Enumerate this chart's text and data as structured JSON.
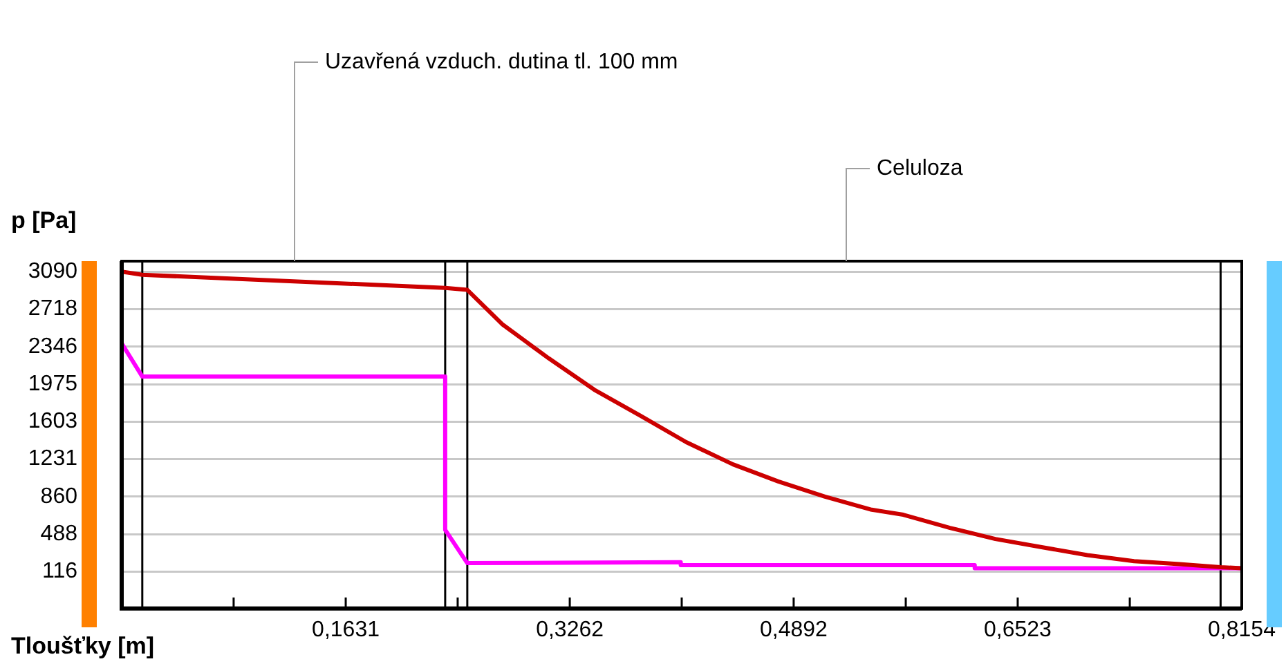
{
  "chart_data": {
    "type": "line",
    "xlabel": "Tloušťky [m]",
    "ylabel": "p [Pa]",
    "xlim": [
      0,
      0.8154
    ],
    "ylim": [
      -250,
      3195
    ],
    "xticks": [
      {
        "value": 0.0815,
        "label": null
      },
      {
        "value": 0.1631,
        "label": "0,1631"
      },
      {
        "value": 0.2446,
        "label": null
      },
      {
        "value": 0.3262,
        "label": "0,3262"
      },
      {
        "value": 0.4077,
        "label": null
      },
      {
        "value": 0.4892,
        "label": "0,4892"
      },
      {
        "value": 0.5708,
        "label": null
      },
      {
        "value": 0.6523,
        "label": "0,6523"
      },
      {
        "value": 0.7339,
        "label": null
      },
      {
        "value": 0.8154,
        "label": "0,8154"
      }
    ],
    "yticks": [
      116,
      488,
      860,
      1231,
      1603,
      1975,
      2346,
      2718,
      3090
    ],
    "grid": "y",
    "legend": false,
    "marker": "none",
    "line_style": "solid",
    "series": [
      {
        "color": "#cc0000",
        "x": [
          0,
          0.015,
          0.2355,
          0.2516,
          0.277,
          0.311,
          0.344,
          0.378,
          0.411,
          0.445,
          0.478,
          0.512,
          0.546,
          0.569,
          0.603,
          0.636,
          0.669,
          0.703,
          0.737,
          0.77,
          0.8,
          0.8154
        ],
        "values": [
          3090,
          3060,
          2930,
          2910,
          2570,
          2230,
          1920,
          1660,
          1400,
          1180,
          1010,
          860,
          730,
          680,
          550,
          440,
          360,
          280,
          220,
          190,
          160,
          150
        ]
      },
      {
        "color": "#ff00ff",
        "x": [
          0,
          0.015,
          0.2355,
          0.2355,
          0.2516,
          0.407,
          0.407,
          0.621,
          0.621,
          0.8154
        ],
        "values": [
          2380,
          2050,
          2050,
          530,
          200,
          210,
          180,
          180,
          150,
          150
        ]
      }
    ],
    "ref_lines": [
      {
        "axis": "x",
        "value": 0.015,
        "color": "#000000"
      },
      {
        "axis": "x",
        "value": 0.2355,
        "color": "#000000"
      },
      {
        "axis": "x",
        "value": 0.2516,
        "color": "#000000"
      },
      {
        "axis": "x",
        "value": 0.8,
        "color": "#000000"
      }
    ],
    "annotations": [
      "Uzavřená vzduch. dutina tl. 100 mm",
      "Celuloza"
    ]
  }
}
